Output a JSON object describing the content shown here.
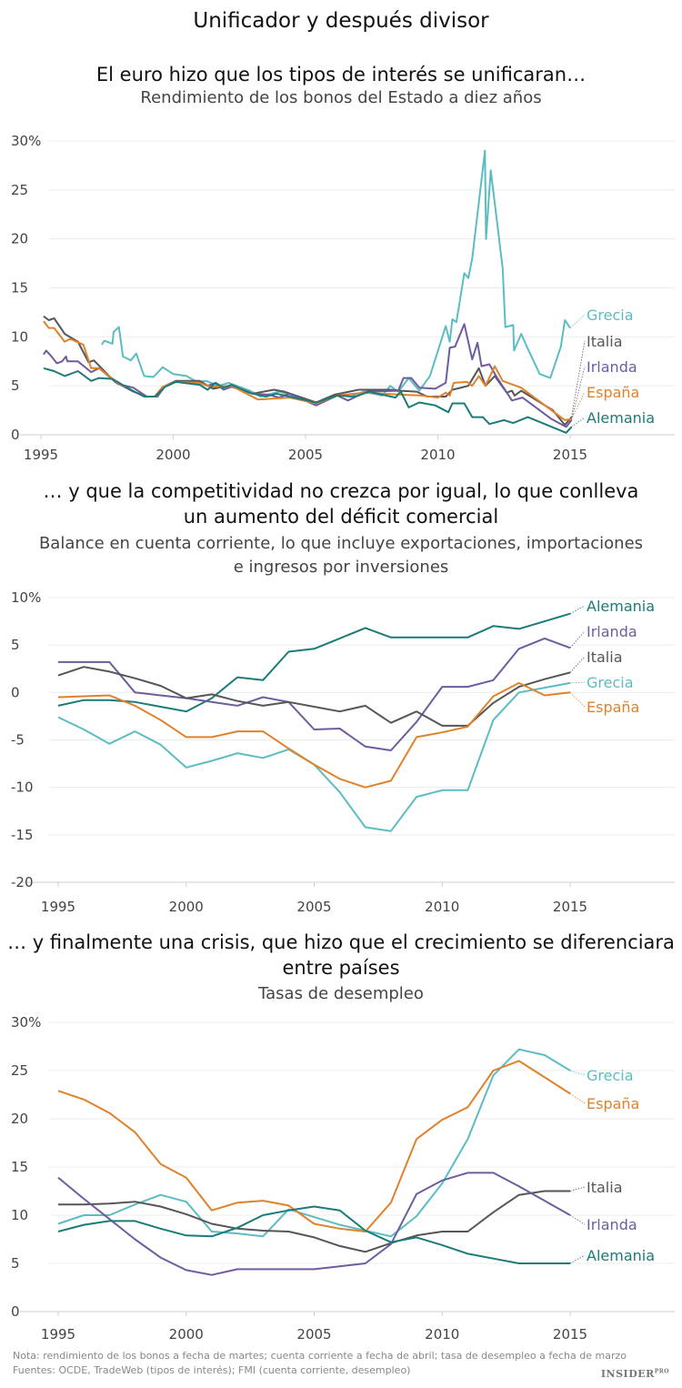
{
  "title": "Unificador y después divisor",
  "colors": {
    "Alemania": "#1b7b78",
    "Grecia": "#5bbcc3",
    "Italia": "#565656",
    "Irlanda": "#6f5c9e",
    "España": "#e0822b",
    "grid": "#ececec",
    "axis": "#cfcfcf"
  },
  "notes": {
    "nota": "Nota: rendimiento de los bonos a fecha de martes; cuenta corriente a fecha de abril; tasa de desempleo a fecha de marzo",
    "fuentes": "Fuentes: OCDE, TradeWeb (tipos de interés); FMI (cuenta corriente, desempleo)",
    "logo": "INSIDER PRO"
  },
  "chart_data": [
    {
      "type": "line",
      "title": "El euro hizo que los tipos de interés se unificaran…",
      "subtitle": "Rendimiento de los bonos del Estado a diez años",
      "ylim": [
        0,
        30
      ],
      "xlim": [
        1995,
        2019
      ],
      "y_ticks": [
        30,
        25,
        20,
        15,
        10,
        5,
        0
      ],
      "y_tick_labels": [
        "30%",
        "25",
        "20",
        "15",
        "10",
        "5",
        "0"
      ],
      "x_ticks": [
        1995,
        2000,
        2005,
        2010,
        2015
      ],
      "x_tick_labels": [
        "1995",
        "2000",
        "2005",
        "2010",
        "2015"
      ],
      "grid": true,
      "legend": "direct labels right",
      "series": [
        {
          "name": "Grecia",
          "x": [
            1997.3,
            1997.4,
            1997.7,
            1997.75,
            1997.95,
            1998.1,
            1998.4,
            1998.6,
            1998.9,
            1999.25,
            1999.6,
            2000.0,
            2000.5,
            2000.9,
            2001.25,
            2001.7,
            2002.1,
            2002.9,
            2003.3,
            2004.0,
            2005.4,
            2006.1,
            2006.7,
            2007.2,
            2007.9,
            2008.2,
            2008.5,
            2008.9,
            2009.3,
            2009.7,
            2010.3,
            2010.45,
            2010.55,
            2010.7,
            2011.0,
            2011.15,
            2011.3,
            2011.78,
            2011.82,
            2012.0,
            2012.45,
            2012.55,
            2012.85,
            2012.88,
            2013.15,
            2013.4,
            2013.85,
            2014.25,
            2014.65,
            2014.8,
            2015.0
          ],
          "y": [
            9.2,
            9.6,
            9.3,
            10.5,
            11.0,
            8.0,
            7.6,
            8.3,
            6.0,
            5.9,
            6.9,
            6.2,
            6.0,
            5.4,
            5.5,
            5.0,
            5.3,
            4.5,
            3.9,
            4.4,
            3.3,
            4.1,
            3.9,
            4.4,
            4.0,
            5.0,
            4.4,
            5.8,
            4.5,
            6.0,
            11.1,
            9.5,
            11.8,
            11.5,
            16.5,
            16.0,
            18.0,
            29.0,
            20.0,
            27.0,
            17.0,
            11.0,
            11.2,
            8.6,
            10.3,
            8.8,
            6.2,
            5.8,
            9.0,
            11.7,
            10.9
          ]
        },
        {
          "name": "Italia",
          "x": [
            1995.1,
            1995.3,
            1995.5,
            1995.9,
            1996.4,
            1996.8,
            1997.0,
            1997.8,
            1998.5,
            1999.0,
            1999.4,
            1999.7,
            2000.1,
            2001.0,
            2001.5,
            2002.1,
            2003.0,
            2003.8,
            2004.2,
            2005.4,
            2006.1,
            2007.0,
            2008.2,
            2008.6,
            2009.2,
            2009.6,
            2010.3,
            2010.55,
            2011.15,
            2011.55,
            2011.8,
            2012.15,
            2012.6,
            2012.8,
            2012.9,
            2013.15,
            2014.35,
            2014.8,
            2015.05
          ],
          "y": [
            12.1,
            11.7,
            11.9,
            10.3,
            9.5,
            7.4,
            7.6,
            5.4,
            4.4,
            3.9,
            3.9,
            5.0,
            5.5,
            5.5,
            4.7,
            5.0,
            4.2,
            4.6,
            4.4,
            3.3,
            4.1,
            4.6,
            4.6,
            4.5,
            4.4,
            3.9,
            3.9,
            4.6,
            5.0,
            6.8,
            5.0,
            6.0,
            4.3,
            4.5,
            4.0,
            4.5,
            2.5,
            1.0,
            1.8
          ]
        },
        {
          "name": "Irlanda",
          "x": [
            1995.1,
            1995.2,
            1995.4,
            1995.6,
            1995.8,
            1995.95,
            1996.0,
            1996.4,
            1996.9,
            1997.2,
            1997.9,
            1998.5,
            1999.0,
            1999.4,
            1999.7,
            2000.1,
            2001.0,
            2001.3,
            2001.6,
            2001.9,
            2002.2,
            2003.0,
            2003.6,
            2004.0,
            2004.4,
            2005.4,
            2006.2,
            2006.6,
            2007.3,
            2008.5,
            2008.7,
            2009.0,
            2009.3,
            2009.9,
            2010.3,
            2010.45,
            2010.65,
            2011.0,
            2011.3,
            2011.5,
            2011.65,
            2011.95,
            2012.2,
            2012.8,
            2013.2,
            2014.3,
            2014.85,
            2015.05
          ],
          "y": [
            8.2,
            8.6,
            8.0,
            7.3,
            7.5,
            8.0,
            7.5,
            7.5,
            6.4,
            6.8,
            5.2,
            4.8,
            3.9,
            3.9,
            5.0,
            5.4,
            5.3,
            5.0,
            5.3,
            4.6,
            4.9,
            4.2,
            4.1,
            3.8,
            4.2,
            3.0,
            4.0,
            3.5,
            4.4,
            4.5,
            5.8,
            5.8,
            4.8,
            4.7,
            5.3,
            8.9,
            9.0,
            11.3,
            7.7,
            9.4,
            7.0,
            7.2,
            6.0,
            3.5,
            3.8,
            1.6,
            0.8,
            1.5
          ]
        },
        {
          "name": "España",
          "x": [
            1995.1,
            1995.3,
            1995.5,
            1995.9,
            1996.1,
            1996.6,
            1996.9,
            1997.2,
            1997.9,
            1998.9,
            1999.3,
            1999.6,
            2000.1,
            2001.0,
            2001.4,
            2002.2,
            2003.2,
            2004.4,
            2005.4,
            2006.2,
            2007.2,
            2008.6,
            2009.4,
            2010.0,
            2010.3,
            2010.45,
            2010.6,
            2011.1,
            2011.3,
            2011.55,
            2011.8,
            2012.15,
            2012.45,
            2013.15,
            2014.8,
            2015.05
          ],
          "y": [
            11.6,
            10.9,
            10.9,
            9.5,
            9.8,
            9.2,
            6.8,
            6.8,
            5.3,
            3.9,
            3.9,
            4.9,
            5.4,
            5.3,
            4.9,
            5.0,
            3.6,
            3.8,
            3.2,
            4.0,
            4.3,
            4.1,
            4.0,
            3.8,
            4.3,
            4.0,
            5.3,
            5.4,
            5.0,
            6.0,
            5.0,
            7.0,
            5.5,
            4.8,
            1.5,
            1.6
          ]
        },
        {
          "name": "Alemania",
          "x": [
            1995.1,
            1995.5,
            1995.9,
            1996.4,
            1996.9,
            1997.2,
            1997.7,
            1998.4,
            1998.9,
            1999.3,
            1999.7,
            2000.1,
            2001.0,
            2001.3,
            2001.6,
            2001.9,
            2002.2,
            2003.0,
            2003.5,
            2003.9,
            2005.4,
            2006.2,
            2006.9,
            2007.4,
            2008.4,
            2008.6,
            2008.9,
            2009.3,
            2009.9,
            2010.4,
            2010.55,
            2011.0,
            2011.3,
            2011.7,
            2011.95,
            2012.5,
            2012.85,
            2013.4,
            2014.85,
            2015.05
          ],
          "y": [
            6.8,
            6.5,
            6.0,
            6.5,
            5.5,
            5.8,
            5.7,
            4.6,
            3.9,
            3.9,
            4.9,
            5.4,
            5.1,
            4.6,
            5.3,
            4.8,
            5.1,
            4.2,
            3.9,
            4.2,
            3.3,
            4.0,
            3.9,
            4.4,
            3.8,
            4.4,
            2.8,
            3.3,
            3.0,
            2.3,
            3.2,
            3.2,
            1.8,
            1.8,
            1.1,
            1.5,
            1.2,
            1.8,
            0.2,
            0.8
          ]
        }
      ]
    },
    {
      "type": "line",
      "title": "… y que la competitividad no crezca por igual, lo que conlleva un aumento del déficit comercial",
      "title_lines": [
        "… y que la competitividad no crezca por igual, lo que conlleva",
        "un aumento del déficit comercial"
      ],
      "subtitle_lines": [
        "Balance en cuenta corriente, lo que incluye exportaciones, importaciones",
        "e ingresos por inversiones"
      ],
      "ylim": [
        -20,
        10
      ],
      "xlim": [
        1995,
        2019
      ],
      "y_ticks": [
        10,
        5,
        0,
        -5,
        -10,
        -15,
        -20
      ],
      "y_tick_labels": [
        "10%",
        "5",
        "0",
        "-5",
        "-10",
        "-15",
        "-20"
      ],
      "x_ticks": [
        1995,
        2000,
        2005,
        2010,
        2015
      ],
      "x_tick_labels": [
        "1995",
        "2000",
        "2005",
        "2010",
        "2015"
      ],
      "grid": true,
      "legend": "direct labels right",
      "x": [
        1995,
        1996,
        1997,
        1998,
        1999,
        2000,
        2001,
        2002,
        2003,
        2004,
        2005,
        2006,
        2007,
        2008,
        2009,
        2010,
        2011,
        2012,
        2013,
        2014,
        2015
      ],
      "series": [
        {
          "name": "Alemania",
          "values": [
            -1.4,
            -0.8,
            -0.8,
            -1.0,
            -1.5,
            -2.0,
            -0.6,
            1.6,
            1.3,
            4.3,
            4.6,
            5.7,
            6.8,
            5.8,
            5.8,
            5.8,
            5.8,
            7.0,
            6.7,
            7.5,
            8.3
          ]
        },
        {
          "name": "Irlanda",
          "values": [
            3.2,
            3.2,
            3.2,
            0.0,
            -0.3,
            -0.6,
            -1.0,
            -1.4,
            -0.5,
            -1.0,
            -3.9,
            -3.8,
            -5.7,
            -6.1,
            -3.1,
            0.6,
            0.6,
            1.3,
            4.6,
            5.7,
            4.7
          ]
        },
        {
          "name": "Italia",
          "values": [
            1.8,
            2.7,
            2.2,
            1.5,
            0.7,
            -0.6,
            -0.2,
            -0.9,
            -1.4,
            -1.0,
            -1.5,
            -2.0,
            -1.4,
            -3.2,
            -2.0,
            -3.5,
            -3.5,
            -1.1,
            0.6,
            1.4,
            2.1
          ]
        },
        {
          "name": "Grecia",
          "values": [
            -2.6,
            -3.9,
            -5.4,
            -4.1,
            -5.5,
            -7.9,
            -7.2,
            -6.4,
            -6.9,
            -6.0,
            -7.6,
            -10.5,
            -14.2,
            -14.6,
            -11.0,
            -10.3,
            -10.3,
            -2.9,
            0.0,
            0.5,
            1.0
          ]
        },
        {
          "name": "España",
          "values": [
            -0.5,
            -0.4,
            -0.3,
            -1.4,
            -2.9,
            -4.7,
            -4.7,
            -4.1,
            -4.1,
            -5.9,
            -7.6,
            -9.1,
            -10.0,
            -9.3,
            -4.7,
            -4.2,
            -3.6,
            -0.4,
            1.0,
            -0.3,
            0.0
          ]
        }
      ]
    },
    {
      "type": "line",
      "title": "… y finalmente una crisis, que hizo que el crecimiento se diferenciara entre países",
      "title_lines": [
        "… y finalmente una crisis, que hizo que el crecimiento se diferenciara",
        "entre países"
      ],
      "subtitle": "Tasas de desempleo",
      "ylim": [
        0,
        30
      ],
      "xlim": [
        1995,
        2019
      ],
      "y_ticks": [
        30,
        25,
        20,
        15,
        10,
        5,
        0
      ],
      "y_tick_labels": [
        "30%",
        "25",
        "20",
        "15",
        "10",
        "5",
        "0"
      ],
      "x_ticks": [
        1995,
        2000,
        2005,
        2010,
        2015
      ],
      "x_tick_labels": [
        "1995",
        "2000",
        "2005",
        "2010",
        "2015"
      ],
      "grid": true,
      "legend": "direct labels right",
      "x": [
        1995,
        1996,
        1997,
        1998,
        1999,
        2000,
        2001,
        2002,
        2003,
        2004,
        2005,
        2006,
        2007,
        2008,
        2009,
        2010,
        2011,
        2012,
        2013,
        2014,
        2015
      ],
      "series": [
        {
          "name": "Grecia",
          "values": [
            9.1,
            10.0,
            10.0,
            11.1,
            12.1,
            11.4,
            8.3,
            8.1,
            7.8,
            10.6,
            9.8,
            9.0,
            8.4,
            7.8,
            9.9,
            13.3,
            17.9,
            24.5,
            27.2,
            26.6,
            25.0
          ]
        },
        {
          "name": "España",
          "values": [
            22.9,
            22.0,
            20.6,
            18.6,
            15.3,
            13.9,
            10.5,
            11.3,
            11.5,
            11.0,
            9.1,
            8.6,
            8.3,
            11.3,
            17.9,
            19.9,
            21.2,
            25.0,
            26.0,
            24.3,
            22.6
          ]
        },
        {
          "name": "Italia",
          "values": [
            11.1,
            11.1,
            11.2,
            11.4,
            10.9,
            10.1,
            9.1,
            8.6,
            8.4,
            8.3,
            7.7,
            6.8,
            6.2,
            7.1,
            7.9,
            8.3,
            8.3,
            10.3,
            12.1,
            12.5,
            12.5
          ]
        },
        {
          "name": "Irlanda",
          "values": [
            13.9,
            11.7,
            9.6,
            7.5,
            5.6,
            4.3,
            3.8,
            4.4,
            4.4,
            4.4,
            4.4,
            4.7,
            5.0,
            7.0,
            12.2,
            13.6,
            14.4,
            14.4,
            13.0,
            11.5,
            10.0
          ]
        },
        {
          "name": "Alemania",
          "values": [
            8.3,
            9.0,
            9.4,
            9.4,
            8.6,
            7.9,
            7.8,
            8.7,
            10.0,
            10.5,
            10.9,
            10.5,
            8.4,
            7.2,
            7.7,
            6.9,
            6.0,
            5.5,
            5.0,
            5.0,
            5.0
          ]
        }
      ]
    }
  ]
}
